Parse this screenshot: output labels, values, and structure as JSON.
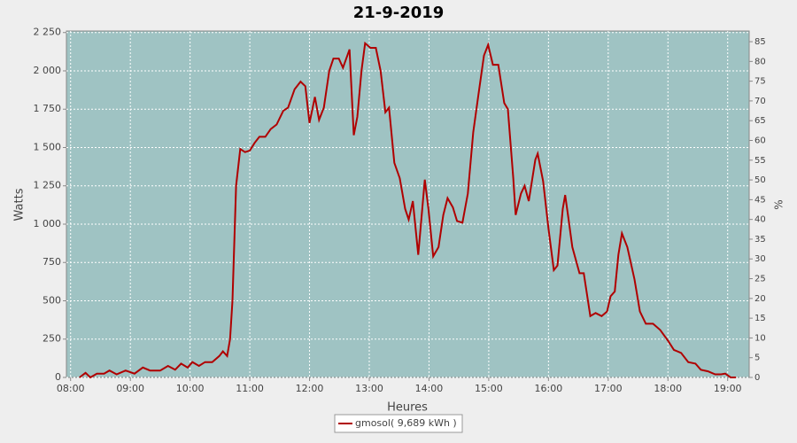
{
  "chart_data": {
    "type": "line",
    "title": "21-9-2019",
    "x_label": "Heures",
    "y_label": "Watts",
    "y2_label": "%",
    "x": [
      8.15,
      8.25,
      8.33,
      8.44,
      8.56,
      8.65,
      8.77,
      8.92,
      9.07,
      9.21,
      9.33,
      9.5,
      9.63,
      9.75,
      9.85,
      9.96,
      10.04,
      10.15,
      10.25,
      10.37,
      10.49,
      10.55,
      10.62,
      10.67,
      10.71,
      10.77,
      10.84,
      10.92,
      11.0,
      11.08,
      11.16,
      11.26,
      11.35,
      11.45,
      11.56,
      11.64,
      11.75,
      11.85,
      11.93,
      12.0,
      12.09,
      12.16,
      12.24,
      12.33,
      12.4,
      12.49,
      12.56,
      12.67,
      12.74,
      12.8,
      12.87,
      12.93,
      13.02,
      13.11,
      13.19,
      13.27,
      13.33,
      13.42,
      13.51,
      13.6,
      13.66,
      13.73,
      13.82,
      13.93,
      13.99,
      14.07,
      14.16,
      14.24,
      14.31,
      14.4,
      14.47,
      14.56,
      14.65,
      14.74,
      14.83,
      14.92,
      14.99,
      15.07,
      15.16,
      15.26,
      15.32,
      15.41,
      15.45,
      15.54,
      15.6,
      15.67,
      15.78,
      15.82,
      15.91,
      16.0,
      16.09,
      16.15,
      16.24,
      16.28,
      16.33,
      16.4,
      16.52,
      16.59,
      16.7,
      16.79,
      16.89,
      16.98,
      17.04,
      17.11,
      17.17,
      17.23,
      17.32,
      17.44,
      17.53,
      17.63,
      17.75,
      17.87,
      18.0,
      18.1,
      18.22,
      18.34,
      18.46,
      18.55,
      18.67,
      18.79,
      18.89,
      18.96,
      19.05,
      19.14
    ],
    "series": [
      {
        "name": "gmosol( 9,689 kWh )",
        "color": "#b00000",
        "values": [
          0,
          30,
          0,
          25,
          25,
          45,
          20,
          45,
          25,
          65,
          45,
          45,
          75,
          50,
          90,
          65,
          100,
          75,
          100,
          100,
          140,
          170,
          140,
          250,
          500,
          1250,
          1490,
          1470,
          1480,
          1530,
          1570,
          1570,
          1620,
          1650,
          1740,
          1760,
          1880,
          1930,
          1900,
          1660,
          1830,
          1680,
          1760,
          2000,
          2080,
          2080,
          2020,
          2140,
          1580,
          1700,
          2000,
          2180,
          2150,
          2150,
          2000,
          1730,
          1760,
          1400,
          1300,
          1100,
          1030,
          1150,
          800,
          1290,
          1100,
          790,
          850,
          1060,
          1170,
          1110,
          1020,
          1010,
          1200,
          1600,
          1850,
          2100,
          2170,
          2040,
          2040,
          1790,
          1750,
          1300,
          1060,
          1200,
          1250,
          1150,
          1420,
          1460,
          1280,
          970,
          700,
          730,
          1100,
          1190,
          1050,
          850,
          680,
          680,
          400,
          420,
          400,
          430,
          530,
          560,
          800,
          940,
          850,
          640,
          430,
          350,
          350,
          310,
          240,
          180,
          160,
          100,
          90,
          50,
          40,
          20,
          20,
          25,
          0,
          0
        ]
      }
    ],
    "xlim": [
      7.93,
      19.36
    ],
    "xticks": [
      {
        "value": 8,
        "label": "08:00"
      },
      {
        "value": 9,
        "label": "09:00"
      },
      {
        "value": 10,
        "label": "10:00"
      },
      {
        "value": 11,
        "label": "11:00"
      },
      {
        "value": 12,
        "label": "12:00"
      },
      {
        "value": 13,
        "label": "13:00"
      },
      {
        "value": 14,
        "label": "14:00"
      },
      {
        "value": 15,
        "label": "15:00"
      },
      {
        "value": 16,
        "label": "16:00"
      },
      {
        "value": 17,
        "label": "17:00"
      },
      {
        "value": 18,
        "label": "18:00"
      },
      {
        "value": 19,
        "label": "19:00"
      }
    ],
    "ylim": [
      0,
      2260
    ],
    "yticks": [
      0,
      250,
      500,
      750,
      {
        "value": 1000,
        "label": "1 000"
      },
      {
        "value": 1250,
        "label": "1 250"
      },
      {
        "value": 1500,
        "label": "1 500"
      },
      {
        "value": 1750,
        "label": "1 750"
      },
      {
        "value": 2000,
        "label": "2 000"
      },
      {
        "value": 2250,
        "label": "2 250"
      }
    ],
    "y2lim": [
      0,
      87.7
    ],
    "y2ticks": [
      0,
      5,
      10,
      15,
      20,
      25,
      30,
      35,
      40,
      45,
      50,
      55,
      60,
      65,
      70,
      75,
      80,
      85
    ],
    "grid": true,
    "background": "#9fc3c3",
    "legend": "bottom"
  }
}
